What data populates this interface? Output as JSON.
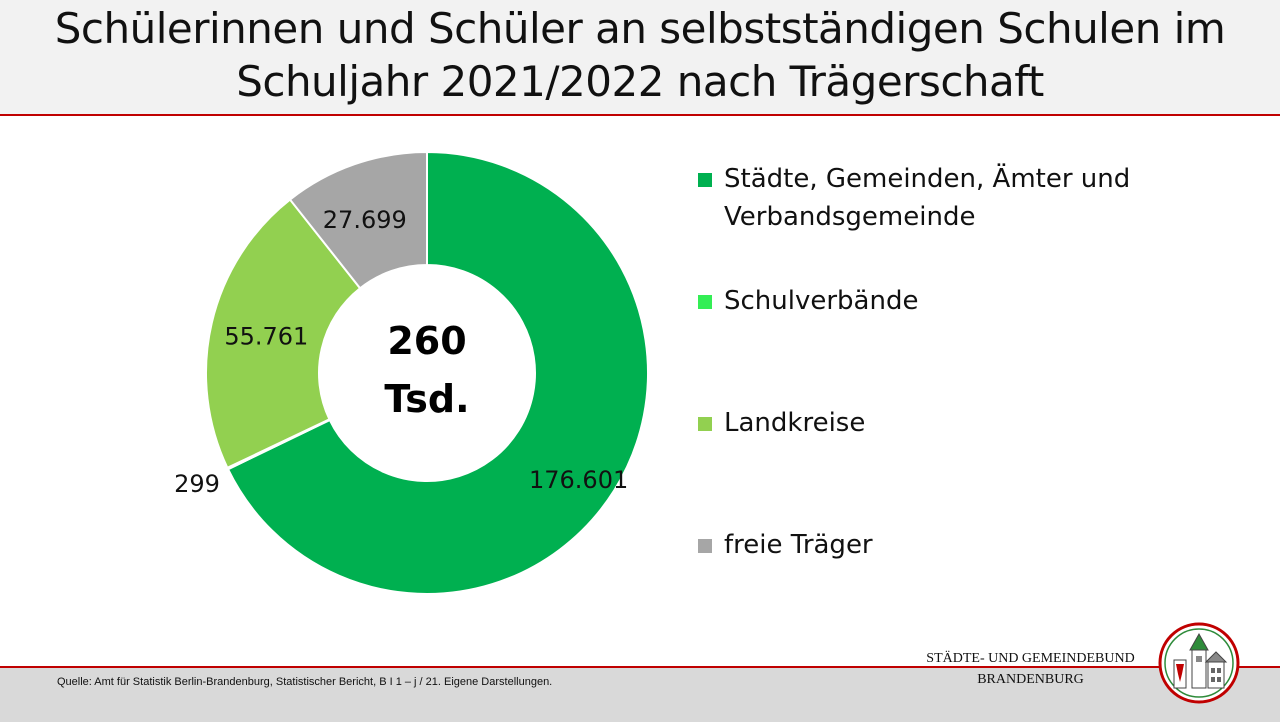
{
  "header": {
    "title_line1": "Schülerinnen und Schüler an selbstständigen Schulen im",
    "title_line2": "Schuljahr 2021/2022 nach Trägerschaft"
  },
  "chart_data": {
    "type": "pie",
    "donut": true,
    "center_label_line1": "260",
    "center_label_line2": "Tsd.",
    "series": [
      {
        "name": "Städte, Gemeinden, Ämter und Verbandsgemeinde",
        "value": 176601,
        "label": "176.601",
        "color": "#00b050"
      },
      {
        "name": "Schulverbände",
        "value": 299,
        "label": "299",
        "color": "#33ee55"
      },
      {
        "name": "Landkreise",
        "value": 55761,
        "label": "55.761",
        "color": "#92d050"
      },
      {
        "name": "freie Träger",
        "value": 27699,
        "label": "27.699",
        "color": "#a6a6a6"
      }
    ],
    "legend_position": "right"
  },
  "legend": {
    "items": [
      {
        "line1": "Städte, Gemeinden, Ämter und",
        "line2": "Verbandsgemeinde",
        "color": "#00b050"
      },
      {
        "line1": "Schulverbände",
        "line2": "",
        "color": "#33ee55"
      },
      {
        "line1": "Landkreise",
        "line2": "",
        "color": "#92d050"
      },
      {
        "line1": "freie Träger",
        "line2": "",
        "color": "#a6a6a6"
      }
    ]
  },
  "footer": {
    "source": "Quelle: Amt für Statistik Berlin-Brandenburg, Statistischer Bericht, B I 1 – j / 21. Eigene Darstellungen.",
    "org_line1": "STÄDTE-  UND GEMEINDEBUND",
    "org_line2": "BRANDENBURG"
  },
  "colors": {
    "accent_line": "#c00000",
    "band": "#f2f2f2",
    "footer": "#d9d9d9"
  }
}
